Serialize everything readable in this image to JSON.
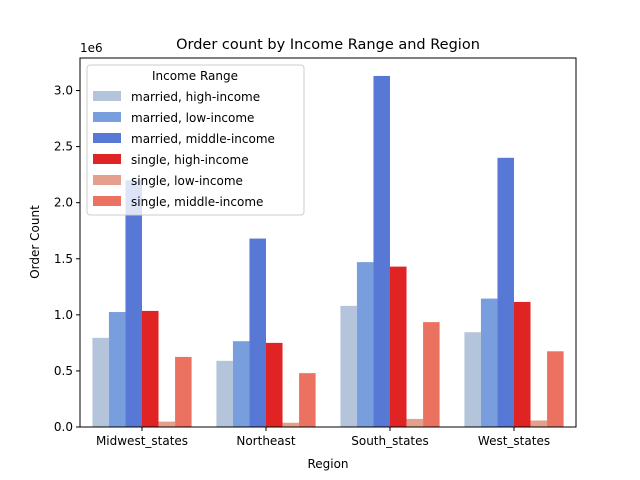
{
  "chart_data": {
    "type": "bar",
    "title": "Order count by Income Range and Region",
    "xlabel": "Region",
    "ylabel": "Order Count",
    "y_offset_text": "1e6",
    "y_tick_labels": [
      "0.0",
      "0.5",
      "1.0",
      "1.5",
      "2.0",
      "2.5",
      "3.0"
    ],
    "categories": [
      "Midwest_states",
      "Northeast",
      "South_states",
      "West_states"
    ],
    "legend_title": "Income Range",
    "legend_position": "upper-left",
    "ylim": [
      0,
      3290000
    ],
    "series": [
      {
        "name": "married, high-income",
        "color": "#b4c5db",
        "values": [
          795000,
          590000,
          1080000,
          845000
        ]
      },
      {
        "name": "married, low-income",
        "color": "#789ede",
        "values": [
          1025000,
          765000,
          1470000,
          1145000
        ]
      },
      {
        "name": "married, middle-income",
        "color": "#5778d4",
        "values": [
          2200000,
          1680000,
          3130000,
          2400000
        ]
      },
      {
        "name": "single, high-income",
        "color": "#e02424",
        "values": [
          1035000,
          750000,
          1430000,
          1115000
        ]
      },
      {
        "name": "single, low-income",
        "color": "#e5a08d",
        "values": [
          48000,
          38000,
          72000,
          58000
        ]
      },
      {
        "name": "single, middle-income",
        "color": "#eb7260",
        "values": [
          625000,
          480000,
          935000,
          675000
        ]
      }
    ]
  }
}
